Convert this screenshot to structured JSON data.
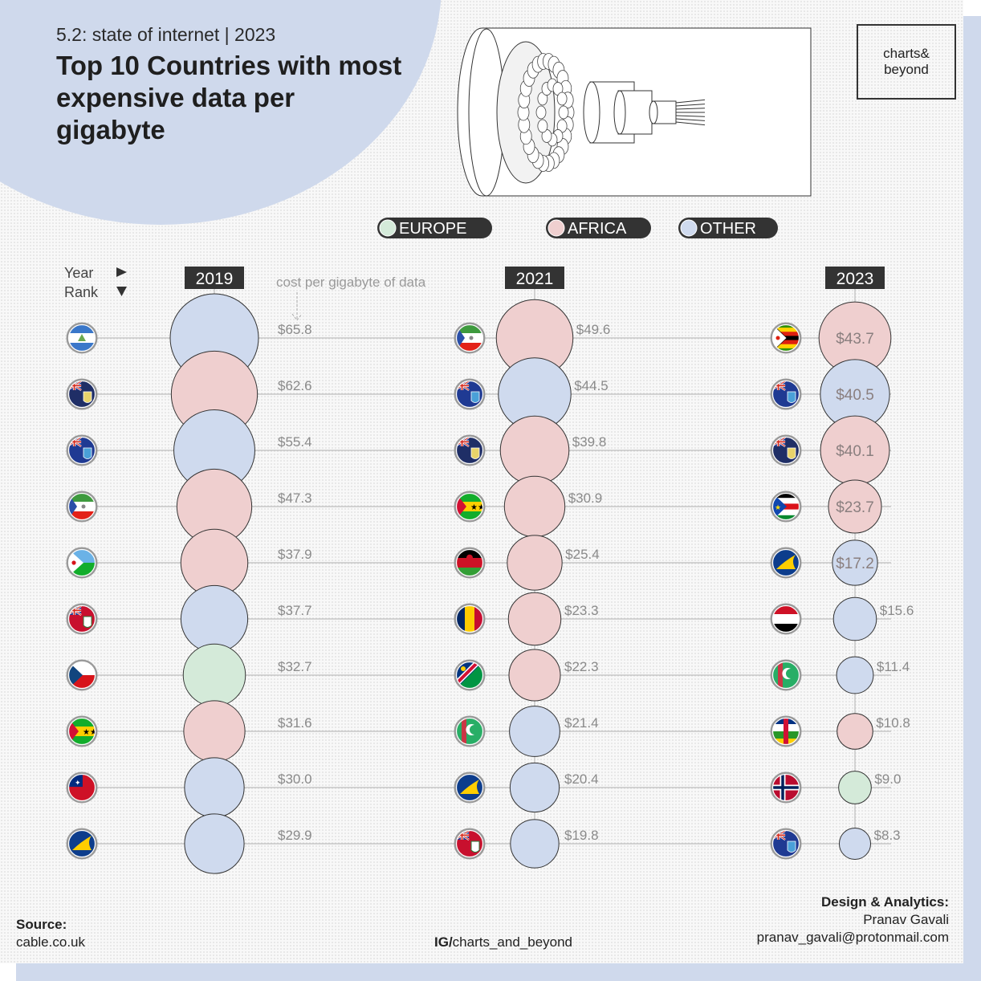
{
  "header": {
    "subtitle": "5.2: state of internet | 2023",
    "title": "Top 10 Countries with most expensive data per gigabyte",
    "logo": "charts&\nbeyond"
  },
  "colors": {
    "europe": "#d4ead9",
    "africa": "#efcfcf",
    "other": "#cfdaee",
    "line": "#bdbdbd",
    "accent": "#cfd9ec"
  },
  "legend": [
    {
      "label": "EUROPE",
      "key": "europe"
    },
    {
      "label": "AFRICA",
      "key": "africa"
    },
    {
      "label": "OTHER",
      "key": "other"
    }
  ],
  "axis_labels": {
    "year": "Year",
    "rank": "Rank",
    "value_note": "cost per gigabyte of data"
  },
  "chart_data": {
    "type": "bubble-rank",
    "unit": "cost per gigabyte of data (USD)",
    "years": [
      {
        "year": "2019",
        "entries": [
          {
            "rank": 1,
            "value": 65.8,
            "label": "$65.8",
            "region": "other",
            "flag": "nicaragua-flag"
          },
          {
            "rank": 2,
            "value": 62.6,
            "label": "$62.6",
            "region": "africa",
            "flag": "saint-helena-flag"
          },
          {
            "rank": 3,
            "value": 55.4,
            "label": "$55.4",
            "region": "other",
            "flag": "falkland-islands-flag"
          },
          {
            "rank": 4,
            "value": 47.3,
            "label": "$47.3",
            "region": "africa",
            "flag": "equatorial-guinea-flag"
          },
          {
            "rank": 5,
            "value": 37.9,
            "label": "$37.9",
            "region": "africa",
            "flag": "djibouti-flag"
          },
          {
            "rank": 6,
            "value": 37.7,
            "label": "$37.7",
            "region": "other",
            "flag": "bermuda-flag"
          },
          {
            "rank": 7,
            "value": 32.7,
            "label": "$32.7",
            "region": "europe",
            "flag": "czech-republic-flag"
          },
          {
            "rank": 8,
            "value": 31.6,
            "label": "$31.6",
            "region": "africa",
            "flag": "sao-tome-flag"
          },
          {
            "rank": 9,
            "value": 30.0,
            "label": "$30.0",
            "region": "other",
            "flag": "samoa-flag"
          },
          {
            "rank": 10,
            "value": 29.9,
            "label": "$29.9",
            "region": "other",
            "flag": "tokelau-flag"
          }
        ]
      },
      {
        "year": "2021",
        "entries": [
          {
            "rank": 1,
            "value": 49.6,
            "label": "$49.6",
            "region": "africa",
            "flag": "equatorial-guinea-flag"
          },
          {
            "rank": 2,
            "value": 44.5,
            "label": "$44.5",
            "region": "other",
            "flag": "falkland-islands-flag"
          },
          {
            "rank": 3,
            "value": 39.8,
            "label": "$39.8",
            "region": "africa",
            "flag": "saint-helena-flag"
          },
          {
            "rank": 4,
            "value": 30.9,
            "label": "$30.9",
            "region": "africa",
            "flag": "sao-tome-flag"
          },
          {
            "rank": 5,
            "value": 25.4,
            "label": "$25.4",
            "region": "africa",
            "flag": "malawi-flag"
          },
          {
            "rank": 6,
            "value": 23.3,
            "label": "$23.3",
            "region": "africa",
            "flag": "chad-flag"
          },
          {
            "rank": 7,
            "value": 22.3,
            "label": "$22.3",
            "region": "africa",
            "flag": "namibia-flag"
          },
          {
            "rank": 8,
            "value": 21.4,
            "label": "$21.4",
            "region": "other",
            "flag": "turkmenistan-flag"
          },
          {
            "rank": 9,
            "value": 20.4,
            "label": "$20.4",
            "region": "other",
            "flag": "tokelau-flag"
          },
          {
            "rank": 10,
            "value": 19.8,
            "label": "$19.8",
            "region": "other",
            "flag": "bermuda-flag"
          }
        ]
      },
      {
        "year": "2023",
        "entries": [
          {
            "rank": 1,
            "value": 43.7,
            "label": "$43.7",
            "region": "africa",
            "flag": "zimbabwe-flag"
          },
          {
            "rank": 2,
            "value": 40.5,
            "label": "$40.5",
            "region": "other",
            "flag": "falkland-islands-flag"
          },
          {
            "rank": 3,
            "value": 40.1,
            "label": "$40.1",
            "region": "africa",
            "flag": "saint-helena-flag"
          },
          {
            "rank": 4,
            "value": 23.7,
            "label": "$23.7",
            "region": "africa",
            "flag": "south-sudan-flag"
          },
          {
            "rank": 5,
            "value": 17.2,
            "label": "$17.2",
            "region": "other",
            "flag": "tokelau-flag"
          },
          {
            "rank": 6,
            "value": 15.6,
            "label": "$15.6",
            "region": "other",
            "flag": "yemen-flag"
          },
          {
            "rank": 7,
            "value": 11.4,
            "label": "$11.4",
            "region": "other",
            "flag": "turkmenistan-flag"
          },
          {
            "rank": 8,
            "value": 10.8,
            "label": "$10.8",
            "region": "africa",
            "flag": "central-african-republic-flag"
          },
          {
            "rank": 9,
            "value": 9.0,
            "label": "$9.0",
            "region": "europe",
            "flag": "norway-flag"
          },
          {
            "rank": 10,
            "value": 8.3,
            "label": "$8.3",
            "region": "other",
            "flag": "falkland-islands-flag"
          }
        ]
      }
    ]
  },
  "footer": {
    "source_heading": "Source:",
    "source": "cable.co.uk",
    "ig_prefix": "IG/",
    "ig_handle": "charts_and_beyond",
    "credit_heading": "Design & Analytics:",
    "credit_name": "Pranav Gavali",
    "credit_email": "pranav_gavali@protonmail.com"
  }
}
